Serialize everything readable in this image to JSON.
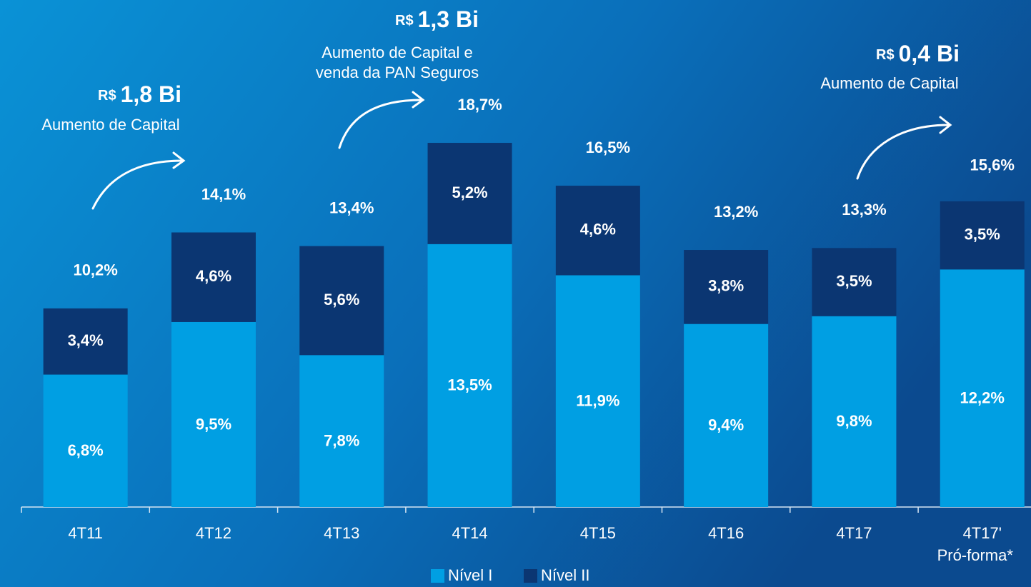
{
  "chart_data": {
    "type": "stacked_bar",
    "categories": [
      "4T11",
      "4T12",
      "4T13",
      "4T14",
      "4T15",
      "4T16",
      "4T17",
      [
        "4T17'",
        "Pró-forma*"
      ]
    ],
    "series": [
      {
        "name": "Nível I",
        "color": "#009fe3",
        "values": [
          6.8,
          9.5,
          7.8,
          13.5,
          11.9,
          9.4,
          9.8,
          12.2
        ],
        "value_labels": [
          "6,8%",
          "9,5%",
          "7,8%",
          "13,5%",
          "11,9%",
          "9,4%",
          "9,8%",
          "12,2%"
        ]
      },
      {
        "name": "Nível II",
        "color": "#0b3672",
        "values": [
          3.4,
          4.6,
          5.6,
          5.2,
          4.6,
          3.8,
          3.5,
          3.5
        ],
        "value_labels": [
          "3,4%",
          "4,6%",
          "5,6%",
          "5,2%",
          "4,6%",
          "3,8%",
          "3,5%",
          "3,5%"
        ]
      }
    ],
    "totals": [
      10.2,
      14.1,
      13.4,
      18.7,
      16.5,
      13.2,
      13.3,
      15.6
    ],
    "total_labels": [
      "10,2%",
      "14,1%",
      "13,4%",
      "18,7%",
      "16,5%",
      "13,2%",
      "13,3%",
      "15,6%"
    ],
    "annotations": [
      {
        "currency": "R$",
        "amount": "1,8 Bi",
        "text": [
          "Aumento de Capital"
        ]
      },
      {
        "currency": "R$",
        "amount": "1,3 Bi",
        "text": [
          "Aumento de Capital e",
          "venda da PAN Seguros"
        ]
      },
      {
        "currency": "R$",
        "amount": "0,4 Bi",
        "text": [
          "Aumento de Capital"
        ]
      }
    ]
  }
}
